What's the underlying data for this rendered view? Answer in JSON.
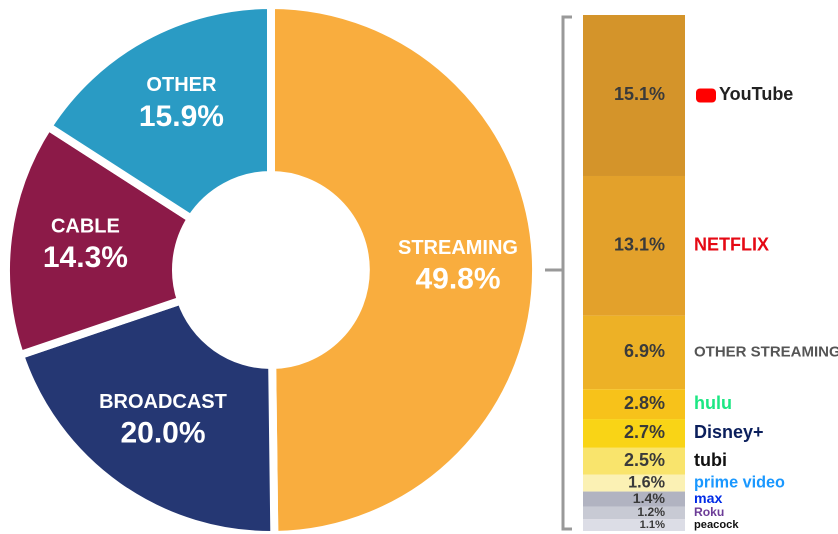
{
  "chart_data": [
    {
      "type": "pie",
      "donut": true,
      "categories": [
        "STREAMING",
        "BROADCAST",
        "CABLE",
        "OTHER"
      ],
      "values": [
        49.8,
        20.0,
        14.3,
        15.9
      ],
      "value_labels": [
        "49.8%",
        "20.0%",
        "14.3%",
        "15.9%"
      ],
      "colors": [
        "#f9ad3e",
        "#253773",
        "#8c1a48",
        "#2a9bc4"
      ]
    },
    {
      "type": "stacked_bar",
      "categories": [
        "YouTube",
        "NETFLIX",
        "OTHER STREAMING",
        "hulu",
        "Disney+",
        "tubi",
        "prime video",
        "max",
        "Roku",
        "peacock"
      ],
      "values": [
        15.1,
        13.1,
        6.9,
        2.8,
        2.7,
        2.5,
        1.6,
        1.4,
        1.2,
        1.1
      ],
      "value_labels": [
        "15.1%",
        "13.1%",
        "6.9%",
        "2.8%",
        "2.7%",
        "2.5%",
        "1.6%",
        "1.4%",
        "1.2%",
        "1.1%"
      ],
      "colors": [
        "#d4942a",
        "#e3a12b",
        "#edb126",
        "#f7c21a",
        "#f9d416",
        "#f9e46c",
        "#fbf1b4",
        "#b1b3c1",
        "#c8cad4",
        "#dcdde6"
      ],
      "label_colors": [
        "#222222",
        "#e50914",
        "#555555",
        "#1ce783",
        "#0b1f5c",
        "#111111",
        "#1a98ff",
        "#002be7",
        "#6c3c97",
        "#111111"
      ]
    }
  ]
}
